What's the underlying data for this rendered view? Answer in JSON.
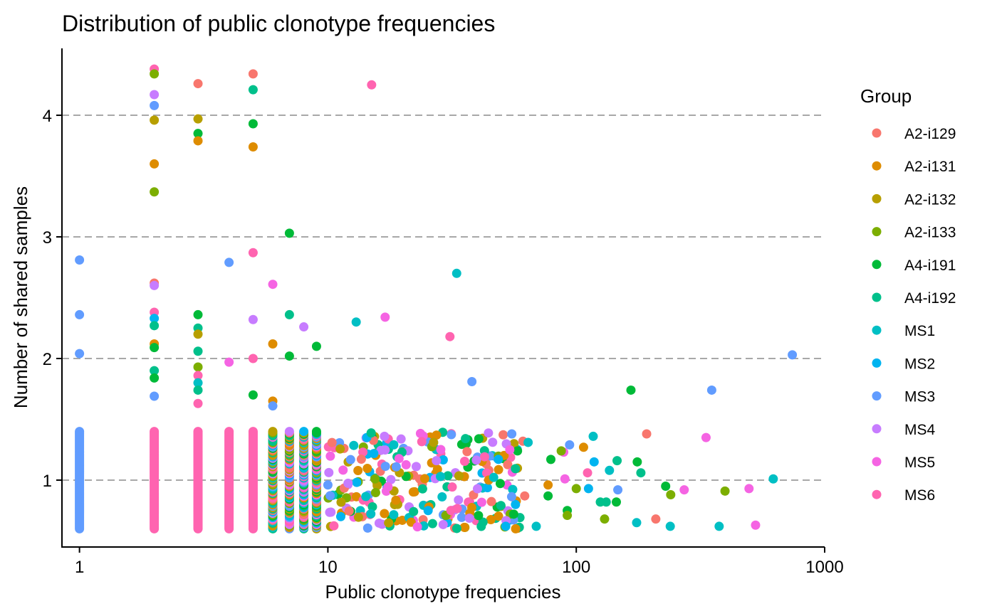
{
  "chart_data": {
    "type": "scatter",
    "title": "Distribution of public clonotype frequencies",
    "xlabel": "Public clonotype frequencies",
    "ylabel": "Number of shared samples",
    "x_scale": "log10",
    "xlim": [
      0.85,
      1000
    ],
    "ylim": [
      0.45,
      4.55
    ],
    "x_ticks": [
      "1",
      "10",
      "100",
      "1000"
    ],
    "y_ticks": [
      "1",
      "2",
      "3",
      "4"
    ],
    "grid": "horizontal dashed at y = 1, 2, 3, 4",
    "legend": {
      "title": "Group",
      "position": "right",
      "entries": [
        {
          "name": "A2-i129",
          "color": "#F8766D"
        },
        {
          "name": "A2-i131",
          "color": "#DE8C00"
        },
        {
          "name": "A2-i132",
          "color": "#B79F00"
        },
        {
          "name": "A2-i133",
          "color": "#7CAE00"
        },
        {
          "name": "A4-i191",
          "color": "#00BA38"
        },
        {
          "name": "A4-i192",
          "color": "#00C08B"
        },
        {
          "name": "MS1",
          "color": "#00BFC4"
        },
        {
          "name": "MS2",
          "color": "#00B4F0"
        },
        {
          "name": "MS3",
          "color": "#619CFF"
        },
        {
          "name": "MS4",
          "color": "#C77CFF"
        },
        {
          "name": "MS5",
          "color": "#F564E3"
        },
        {
          "name": "MS6",
          "color": "#FF64B0"
        }
      ]
    },
    "note_on_values": "The y-values are jittered around integer sample counts (1, 2, 3, 4). Dense columns at frequencies 1–9 contain many overlapping points at y≈1; highlighted outliers are listed below.",
    "points": [
      {
        "group": "MS3",
        "x": 1,
        "y": 2.81
      },
      {
        "group": "MS3",
        "x": 1,
        "y": 2.36
      },
      {
        "group": "MS3",
        "x": 1,
        "y": 2.04
      },
      {
        "group": "MS6",
        "x": 2,
        "y": 4.38
      },
      {
        "group": "A2-i133",
        "x": 2,
        "y": 4.34
      },
      {
        "group": "MS4",
        "x": 2,
        "y": 4.17
      },
      {
        "group": "MS3",
        "x": 2,
        "y": 4.08
      },
      {
        "group": "A2-i132",
        "x": 2,
        "y": 3.96
      },
      {
        "group": "A2-i131",
        "x": 2,
        "y": 3.6
      },
      {
        "group": "A2-i133",
        "x": 2,
        "y": 3.37
      },
      {
        "group": "A2-i129",
        "x": 2,
        "y": 2.62
      },
      {
        "group": "MS4",
        "x": 2,
        "y": 2.6
      },
      {
        "group": "MS6",
        "x": 2,
        "y": 2.38
      },
      {
        "group": "MS2",
        "x": 2,
        "y": 2.33
      },
      {
        "group": "A4-i192",
        "x": 2,
        "y": 2.27
      },
      {
        "group": "A2-i131",
        "x": 2,
        "y": 2.12
      },
      {
        "group": "A4-i191",
        "x": 2,
        "y": 2.09
      },
      {
        "group": "A4-i192",
        "x": 2,
        "y": 1.9
      },
      {
        "group": "A4-i191",
        "x": 2,
        "y": 1.84
      },
      {
        "group": "MS3",
        "x": 2,
        "y": 1.69
      },
      {
        "group": "A2-i129",
        "x": 3,
        "y": 4.26
      },
      {
        "group": "A2-i132",
        "x": 3,
        "y": 3.97
      },
      {
        "group": "A4-i191",
        "x": 3,
        "y": 3.85
      },
      {
        "group": "A2-i131",
        "x": 3,
        "y": 3.79
      },
      {
        "group": "A4-i191",
        "x": 3,
        "y": 2.36
      },
      {
        "group": "A4-i192",
        "x": 3,
        "y": 2.25
      },
      {
        "group": "A2-i132",
        "x": 3,
        "y": 2.2
      },
      {
        "group": "A4-i192",
        "x": 3,
        "y": 2.06
      },
      {
        "group": "A2-i133",
        "x": 3,
        "y": 1.93
      },
      {
        "group": "MS6",
        "x": 3,
        "y": 1.86
      },
      {
        "group": "MS1",
        "x": 3,
        "y": 1.8
      },
      {
        "group": "A4-i192",
        "x": 3,
        "y": 1.74
      },
      {
        "group": "MS6",
        "x": 3,
        "y": 1.63
      },
      {
        "group": "MS3",
        "x": 4,
        "y": 2.79
      },
      {
        "group": "MS5",
        "x": 4,
        "y": 1.97
      },
      {
        "group": "A2-i129",
        "x": 5,
        "y": 4.34
      },
      {
        "group": "A4-i192",
        "x": 5,
        "y": 4.21
      },
      {
        "group": "A4-i191",
        "x": 5,
        "y": 3.93
      },
      {
        "group": "A2-i131",
        "x": 5,
        "y": 3.74
      },
      {
        "group": "MS6",
        "x": 5,
        "y": 2.87
      },
      {
        "group": "MS4",
        "x": 5,
        "y": 2.32
      },
      {
        "group": "MS6",
        "x": 5,
        "y": 2.0
      },
      {
        "group": "A4-i191",
        "x": 5,
        "y": 1.7
      },
      {
        "group": "MS5",
        "x": 6,
        "y": 2.61
      },
      {
        "group": "A2-i131",
        "x": 6,
        "y": 2.12
      },
      {
        "group": "A2-i131",
        "x": 6,
        "y": 1.65
      },
      {
        "group": "MS3",
        "x": 6,
        "y": 1.61
      },
      {
        "group": "A4-i191",
        "x": 7,
        "y": 3.03
      },
      {
        "group": "A4-i192",
        "x": 7,
        "y": 2.36
      },
      {
        "group": "A4-i191",
        "x": 7,
        "y": 2.02
      },
      {
        "group": "MS4",
        "x": 8,
        "y": 2.26
      },
      {
        "group": "A4-i191",
        "x": 9,
        "y": 2.1
      },
      {
        "group": "MS1",
        "x": 13,
        "y": 2.3
      },
      {
        "group": "MS6",
        "x": 15,
        "y": 4.25
      },
      {
        "group": "MS5",
        "x": 17,
        "y": 2.34
      },
      {
        "group": "MS6",
        "x": 31,
        "y": 2.18
      },
      {
        "group": "MS1",
        "x": 33,
        "y": 2.7
      },
      {
        "group": "MS3",
        "x": 38,
        "y": 1.81
      },
      {
        "group": "A4-i191",
        "x": 166,
        "y": 1.74
      },
      {
        "group": "MS3",
        "x": 351,
        "y": 1.74
      },
      {
        "group": "MS3",
        "x": 741,
        "y": 2.03
      },
      {
        "group": "A2-i129",
        "x": 192,
        "y": 1.38
      },
      {
        "group": "A2-i129",
        "x": 209,
        "y": 0.68
      },
      {
        "group": "MS5",
        "x": 333,
        "y": 1.35
      },
      {
        "group": "A2-i133",
        "x": 397,
        "y": 0.91
      },
      {
        "group": "MS5",
        "x": 496,
        "y": 0.93
      },
      {
        "group": "MS5",
        "x": 527,
        "y": 0.63
      },
      {
        "group": "MS1",
        "x": 621,
        "y": 1.01
      },
      {
        "group": "MS1",
        "x": 376,
        "y": 0.62
      },
      {
        "group": "MS1",
        "x": 239,
        "y": 0.62
      },
      {
        "group": "MS5",
        "x": 272,
        "y": 0.92
      },
      {
        "group": "A2-i133",
        "x": 240,
        "y": 0.88
      },
      {
        "group": "A4-i191",
        "x": 229,
        "y": 0.95
      },
      {
        "group": "A4-i192",
        "x": 182,
        "y": 1.06
      },
      {
        "group": "A4-i191",
        "x": 176,
        "y": 1.15
      },
      {
        "group": "MS1",
        "x": 175,
        "y": 0.65
      },
      {
        "group": "MS3",
        "x": 147,
        "y": 0.92
      },
      {
        "group": "A4-i192",
        "x": 146,
        "y": 1.16
      },
      {
        "group": "A4-i191",
        "x": 145,
        "y": 0.82
      },
      {
        "group": "MS1",
        "x": 136,
        "y": 1.08
      },
      {
        "group": "A2-i133",
        "x": 130,
        "y": 0.68
      },
      {
        "group": "A4-i192",
        "x": 132,
        "y": 0.82
      },
      {
        "group": "MS6",
        "x": 111,
        "y": 1.06
      },
      {
        "group": "A2-i131",
        "x": 107,
        "y": 1.27
      },
      {
        "group": "MS1",
        "x": 117,
        "y": 1.36
      },
      {
        "group": "MS2",
        "x": 118,
        "y": 1.15
      },
      {
        "group": "A4-i192",
        "x": 125,
        "y": 0.82
      },
      {
        "group": "MS2",
        "x": 112,
        "y": 0.93
      },
      {
        "group": "A2-i133",
        "x": 100,
        "y": 0.93
      },
      {
        "group": "A4-i191",
        "x": 92,
        "y": 0.75
      },
      {
        "group": "A2-i133",
        "x": 92,
        "y": 0.71
      },
      {
        "group": "MS3",
        "x": 94,
        "y": 1.29
      },
      {
        "group": "MS5",
        "x": 89,
        "y": 1.23
      },
      {
        "group": "A2-i133",
        "x": 87,
        "y": 1.24
      },
      {
        "group": "MS5",
        "x": 90,
        "y": 1.01
      },
      {
        "group": "A4-i191",
        "x": 77,
        "y": 0.87
      },
      {
        "group": "A2-i131",
        "x": 77,
        "y": 0.96
      },
      {
        "group": "A4-i191",
        "x": 79,
        "y": 1.17
      },
      {
        "group": "MS1",
        "x": 69,
        "y": 0.62
      },
      {
        "group": "A2-i129",
        "x": 62,
        "y": 0.87
      },
      {
        "group": "A2-i129",
        "x": 61,
        "y": 1.32
      },
      {
        "group": "MS1",
        "x": 64,
        "y": 1.31
      },
      {
        "group": "A4-i191",
        "x": 58,
        "y": 1.24
      },
      {
        "group": "A2-i131",
        "x": 57,
        "y": 0.6
      },
      {
        "group": "A4-i191",
        "x": 56,
        "y": 0.72
      },
      {
        "group": "MS3",
        "x": 55,
        "y": 1.38
      },
      {
        "group": "MS5",
        "x": 54,
        "y": 1.25
      },
      {
        "group": "MS2",
        "x": 52,
        "y": 0.62
      }
    ],
    "dense_columns": [
      {
        "group": "MS3",
        "x": 1,
        "y_range": [
          0.6,
          1.4
        ]
      },
      {
        "group": "MS6",
        "x": 2,
        "y_range": [
          0.6,
          1.4
        ]
      },
      {
        "group": "MS6",
        "x": 3,
        "y_range": [
          0.6,
          1.4
        ]
      },
      {
        "group": "MS6",
        "x": 4,
        "y_range": [
          0.6,
          1.4
        ]
      },
      {
        "group": "MS6",
        "x": 5,
        "y_range": [
          0.6,
          1.4
        ]
      },
      {
        "group": "mixed",
        "x": 6,
        "y_range": [
          0.6,
          1.4
        ]
      },
      {
        "group": "mixed",
        "x": 7,
        "y_range": [
          0.6,
          1.4
        ]
      },
      {
        "group": "mixed",
        "x": 8,
        "y_range": [
          0.6,
          1.4
        ]
      },
      {
        "group": "mixed",
        "x": 9,
        "y_range": [
          0.6,
          1.4
        ]
      }
    ]
  }
}
